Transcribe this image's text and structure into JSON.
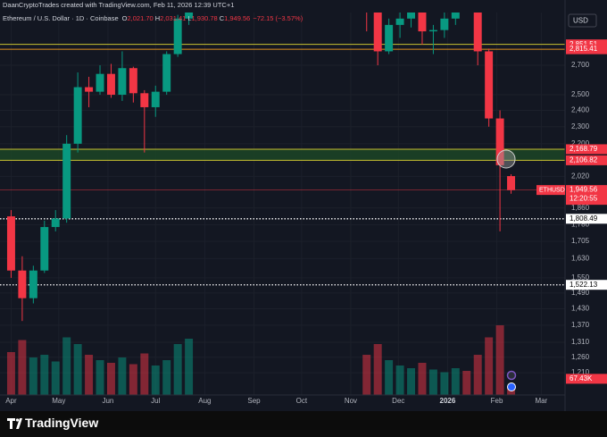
{
  "chart_data": {
    "type": "candlestick",
    "watermark_text": "DaanCryptoTrades created with TradingView.com, Feb 11, 2026 12:39 UTC+1",
    "symbol": "Ethereum / U.S. Dollar · 1D · Coinbase",
    "ohlc": [
      {
        "key": "O",
        "value": 2021.7,
        "label": "2,021.70"
      },
      {
        "key": "H",
        "value": 2031.41,
        "label": "2,031.41"
      },
      {
        "key": "L",
        "value": 1930.78,
        "label": "1,930.78"
      },
      {
        "key": "C",
        "value": 1949.56,
        "label": "1,949.56"
      }
    ],
    "change": "−72.15 (−3.57%)",
    "currency": "USD",
    "brand": "TradingView",
    "up_color": "#089981",
    "down_color": "#f23645",
    "log_scale": true,
    "grid": true,
    "xlim": [
      -7,
      349
    ],
    "xticks": [
      {
        "value": 0,
        "label": "Apr"
      },
      {
        "value": 30,
        "label": "May"
      },
      {
        "value": 61,
        "label": "Jun"
      },
      {
        "value": 91,
        "label": "Jul"
      },
      {
        "value": 122,
        "label": "Aug"
      },
      {
        "value": 153,
        "label": "Sep"
      },
      {
        "value": 183,
        "label": "Oct"
      },
      {
        "value": 214,
        "label": "Nov"
      },
      {
        "value": 244,
        "label": "Dec"
      },
      {
        "value": 275,
        "label": "2026"
      },
      {
        "value": 306,
        "label": "Feb"
      },
      {
        "value": 334,
        "label": "Mar"
      }
    ],
    "ylim": [
      1147,
      3070
    ],
    "yticks": [
      {
        "value": 1210,
        "label": "1,210"
      },
      {
        "value": 1260,
        "label": "1,260"
      },
      {
        "value": 1310,
        "label": "1,310"
      },
      {
        "value": 1370,
        "label": "1,370"
      },
      {
        "value": 1430,
        "label": "1,430"
      },
      {
        "value": 1490,
        "label": "1,490"
      },
      {
        "value": 1550,
        "label": "1,550"
      },
      {
        "value": 1630,
        "label": "1,630"
      },
      {
        "value": 1705,
        "label": "1,705"
      },
      {
        "value": 1780,
        "label": "1,780"
      },
      {
        "value": 1860,
        "label": "1,860"
      },
      {
        "value": 2020,
        "label": "2,020"
      },
      {
        "value": 2200,
        "label": "2,200"
      },
      {
        "value": 2300,
        "label": "2,300"
      },
      {
        "value": 2400,
        "label": "2,400"
      },
      {
        "value": 2500,
        "label": "2,500"
      },
      {
        "value": 2700,
        "label": "2,700"
      }
    ],
    "x": [
      0,
      7,
      14,
      21,
      28,
      35,
      42,
      49,
      56,
      63,
      70,
      77,
      84,
      91,
      98,
      105,
      112,
      224,
      231,
      238,
      245,
      252,
      259,
      266,
      273,
      280,
      287,
      294,
      301,
      308,
      315
    ],
    "open": [
      1820,
      1580,
      1470,
      1580,
      1770,
      1810,
      2200,
      2550,
      2520,
      2640,
      2500,
      2680,
      2510,
      2420,
      2520,
      2780,
      3050,
      3250,
      3100,
      2800,
      3000,
      3050,
      3150,
      2950,
      2960,
      3050,
      3250,
      3150,
      2800,
      2350,
      2021.7
    ],
    "high": [
      1850,
      1640,
      1600,
      1800,
      1850,
      2250,
      2650,
      2620,
      2700,
      2710,
      2800,
      2690,
      2530,
      2560,
      2800,
      3080,
      3400,
      3300,
      3150,
      3050,
      3100,
      3200,
      3200,
      3000,
      3100,
      3300,
      3350,
      3200,
      2820,
      2400,
      2031.41
    ],
    "low": [
      1550,
      1385,
      1450,
      1570,
      1750,
      1790,
      2150,
      2420,
      2500,
      2480,
      2460,
      2450,
      2150,
      2360,
      2500,
      2760,
      3000,
      2950,
      2700,
      2780,
      2900,
      2980,
      2850,
      2780,
      2900,
      3000,
      3100,
      2700,
      2300,
      1750,
      1930.78
    ],
    "close": [
      1580,
      1470,
      1580,
      1770,
      1810,
      2200,
      2550,
      2520,
      2640,
      2500,
      2680,
      2510,
      2420,
      2520,
      2780,
      3050,
      3380,
      3100,
      2800,
      3000,
      3050,
      3150,
      2950,
      2960,
      3050,
      3250,
      3150,
      2800,
      2350,
      2080,
      1949.56
    ],
    "volume": [
      320,
      410,
      280,
      300,
      250,
      430,
      380,
      300,
      260,
      240,
      280,
      230,
      310,
      220,
      260,
      380,
      420,
      300,
      380,
      260,
      220,
      200,
      240,
      190,
      170,
      200,
      180,
      300,
      430,
      520,
      67.43
    ],
    "volume_lim": [
      0,
      600
    ],
    "volume_label": {
      "value": 67.43,
      "label": "67.43K"
    },
    "levels": [
      {
        "value": 2851.51,
        "label": "2,851.51",
        "color": "#c9c230",
        "tag_color": "#f23645",
        "style": "solid"
      },
      {
        "value": 2815.41,
        "label": "2,815.41",
        "color": "#e0901e",
        "tag_color": "#f23645",
        "style": "solid"
      },
      {
        "value": 2168.79,
        "label": "2,168.79",
        "color": "#c9c230",
        "tag_color": "#f23645",
        "style": "solid",
        "fill_below": "#1c4526"
      },
      {
        "value": 2106.82,
        "label": "2,106.82",
        "color": "#c9c230",
        "tag_color": "#f23645",
        "style": "solid"
      },
      {
        "value": 1808.49,
        "label": "1,808.49",
        "color": "#ffffff",
        "tag_color": "#ffffff",
        "style": "dotted"
      },
      {
        "value": 1522.13,
        "label": "1,522.13",
        "color": "#ffffff",
        "tag_color": "#ffffff",
        "style": "dotted"
      }
    ],
    "last_price": {
      "value": 1949.56,
      "label": "1,949.56",
      "symbol": "ETHUSD",
      "countdown": "12:20:55"
    }
  }
}
